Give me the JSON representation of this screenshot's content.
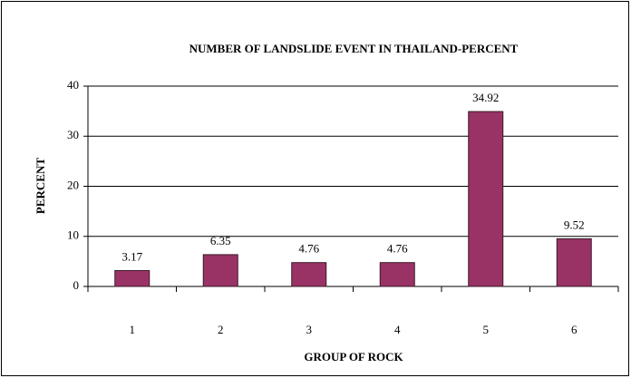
{
  "chart_data": {
    "type": "bar",
    "title": "NUMBER OF LANDSLIDE EVENT IN THAILAND-PERCENT",
    "x_label": "GROUP OF ROCK",
    "y_label": "PERCENT",
    "categories": [
      "1",
      "2",
      "3",
      "4",
      "5",
      "6"
    ],
    "values": [
      3.17,
      6.35,
      4.76,
      4.76,
      34.92,
      9.52
    ],
    "color": "#993366",
    "ylim": [
      0,
      40
    ],
    "yticks": [
      0,
      10,
      20,
      30,
      40
    ],
    "grid": true
  }
}
